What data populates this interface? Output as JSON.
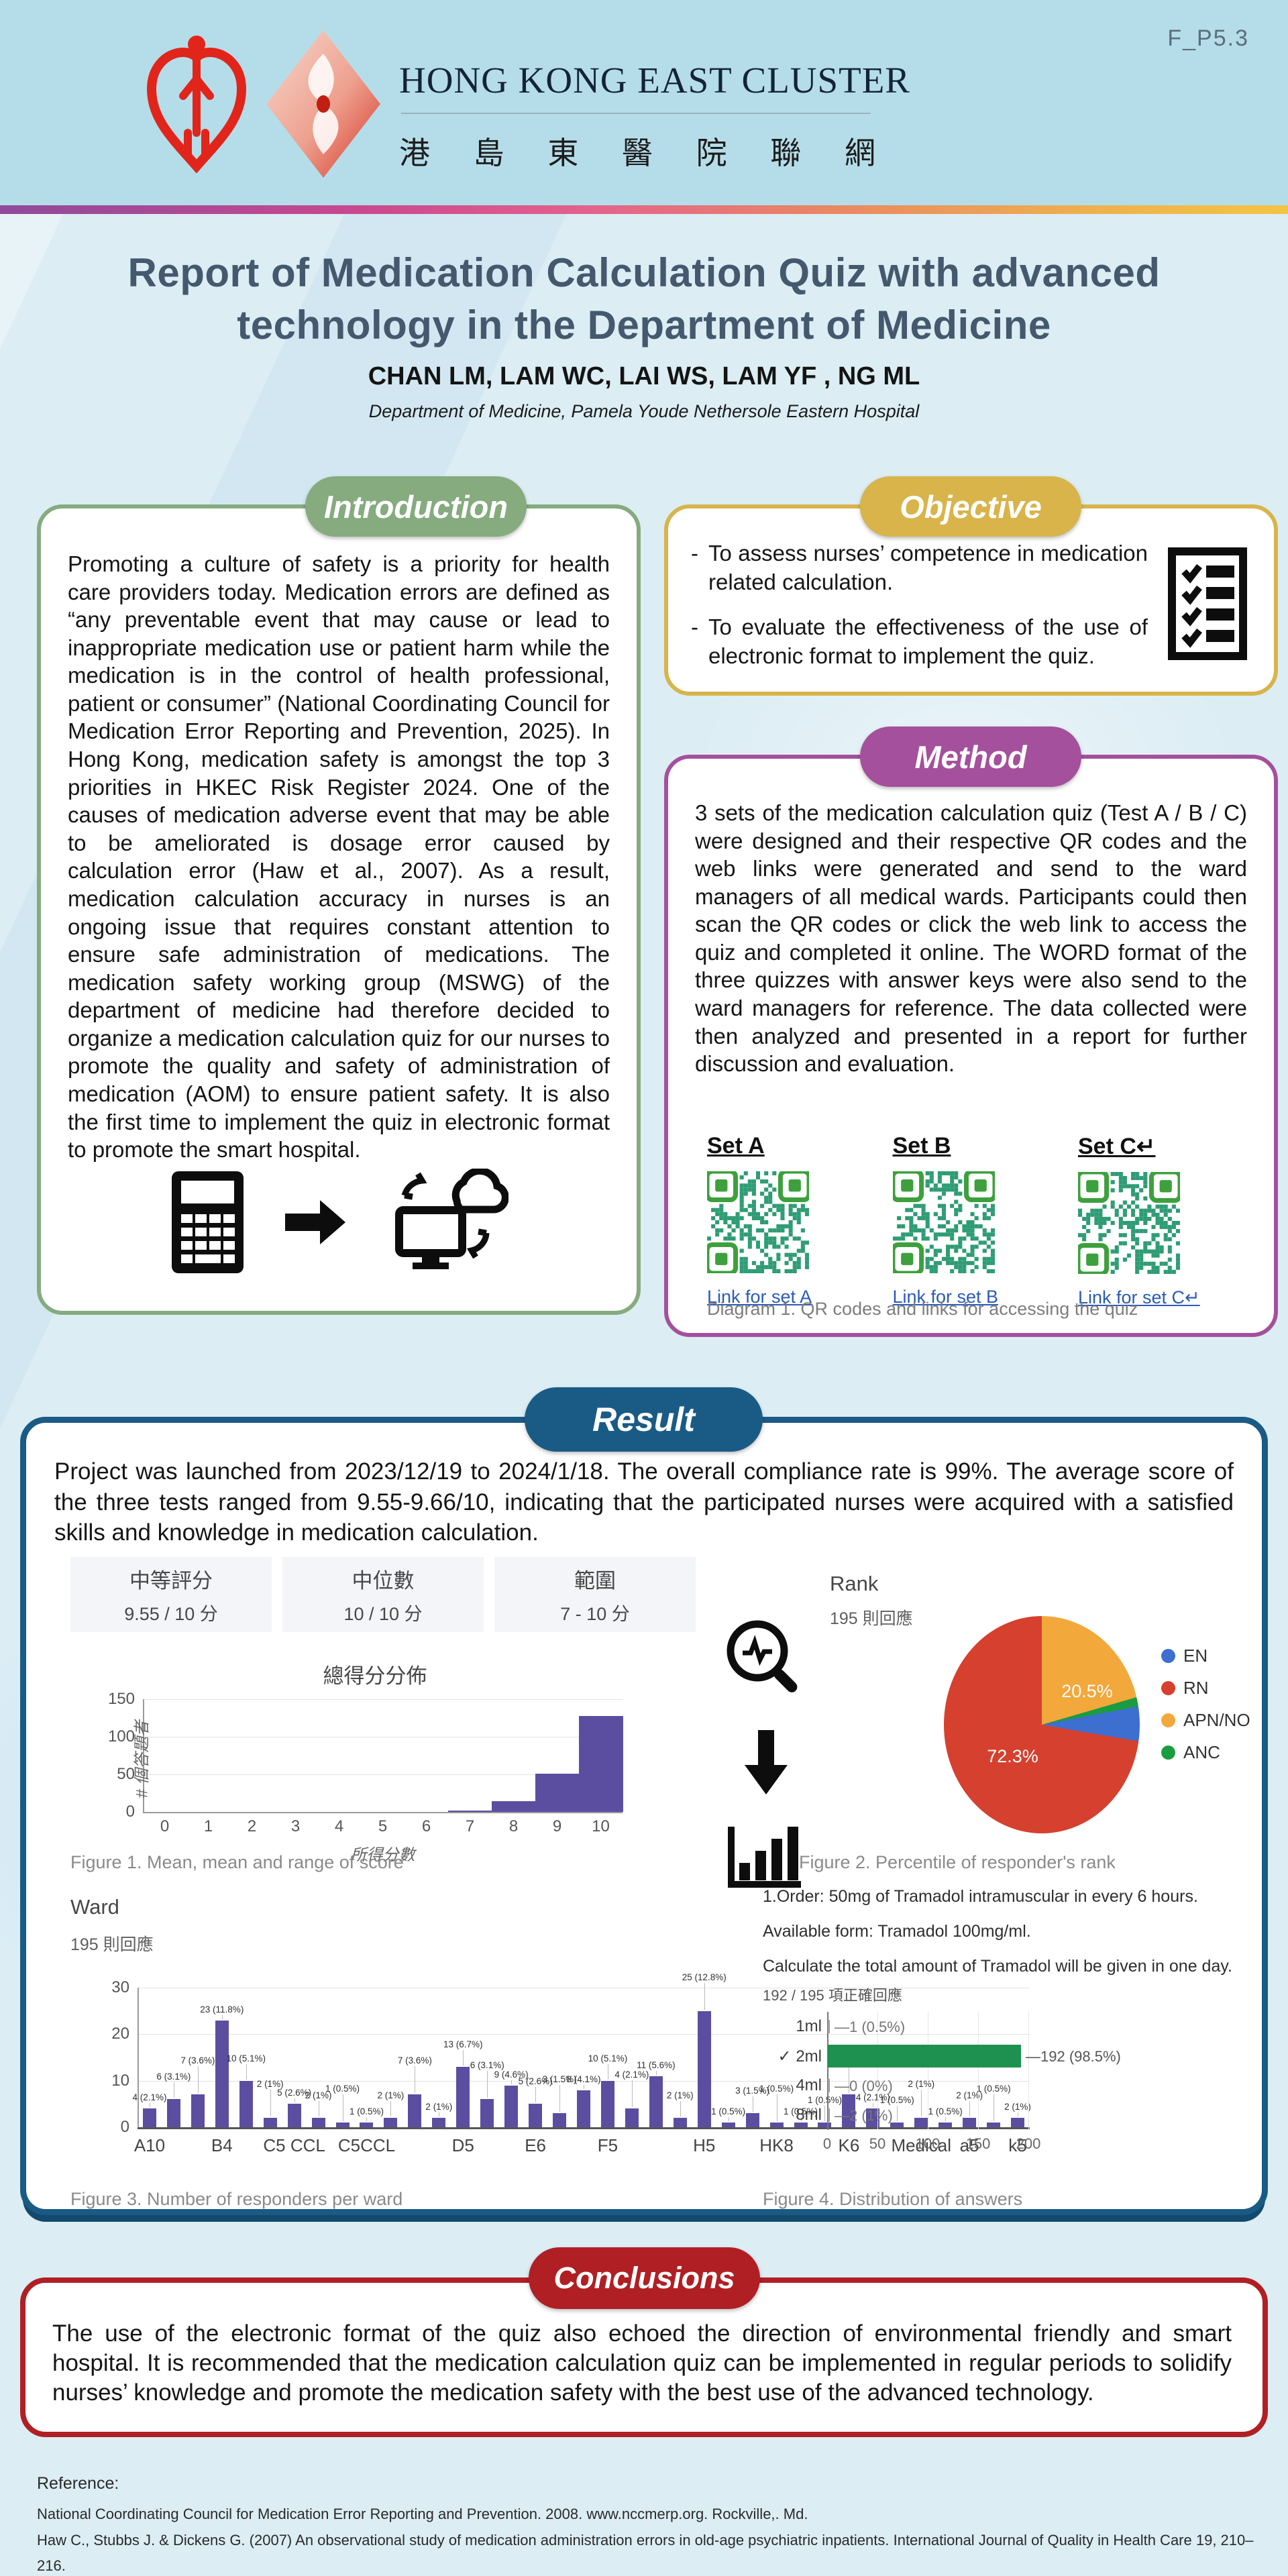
{
  "page_code": "F_P5.3",
  "header": {
    "org_en": "HONG KONG EAST CLUSTER",
    "org_zh": [
      "港",
      "島",
      "東",
      "醫",
      "院",
      "聯",
      "網"
    ]
  },
  "title_block": {
    "title": "Report of Medication Calculation Quiz with advanced\ntechnology in the Department of Medicine",
    "authors": "CHAN LM, LAM WC, LAI WS, LAM YF , NG ML",
    "affiliation": "Department of Medicine, Pamela Youde Nethersole Eastern Hospital"
  },
  "introduction": {
    "heading": "Introduction",
    "body": "Promoting a culture of safety is a priority for health care providers today. Medication errors are defined as “any preventable event that may cause or lead to inappropriate medication use or patient harm while the medication is in the control of health professional, patient or consumer” (National Coordinating Council for Medication Error Reporting and Prevention, 2025). In Hong Kong, medication safety is amongst the top 3 priorities in HKEC Risk Register 2024. One of the causes of medication adverse event that may be able to be ameliorated is dosage error caused by calculation error (Haw et al., 2007). As a result, medication calculation accuracy in nurses is an ongoing issue that requires constant attention to ensure safe administration of medications. The medication safety working group (MSWG) of the department of medicine had therefore decided to organize a medication calculation quiz for our nurses to promote the quality and safety of administration of medication (AOM) to ensure patient safety. It is also the first time to implement the quiz in electronic format to promote the smart hospital."
  },
  "objective": {
    "heading": "Objective",
    "bullets": [
      "To assess nurses’ competence in medication related calculation.",
      "To evaluate the effectiveness of the use of electronic format to implement the quiz."
    ]
  },
  "method": {
    "heading": "Method",
    "body": "3 sets of the medication calculation quiz (Test A / B / C) were designed and their respective QR codes and the web links were generated and send to the ward managers of all medical wards. Participants could then scan the QR codes or click the web link to access the quiz and completed it online. The WORD format of the three quizzes with answer keys were also send to the ward managers for reference. The data collected were then analyzed and presented in a report for further discussion and evaluation.",
    "qr_sets": [
      {
        "set_label": "Set A",
        "link_label": "Link for set A"
      },
      {
        "set_label": "Set B",
        "link_label": "Link for set B"
      },
      {
        "set_label": "Set C↵",
        "link_label": "Link for set C↵"
      }
    ],
    "diagram_caption": "Diagram 1. QR codes and links for accessing the quiz"
  },
  "result": {
    "heading": "Result",
    "body": "Project was launched from 2023/12/19 to 2024/1/18. The overall compliance rate is 99%. The average score of the three tests ranged from 9.55-9.66/10, indicating that the participated nurses were acquired with a satisfied skills and knowledge in medication calculation.",
    "figure1_caption": "Figure 1. Mean, mean and range of score",
    "figure2_caption": "Figure 2. Percentile of responder's rank",
    "figure3_caption": "Figure 3. Number of responders per ward",
    "figure4_caption": "Figure 4. Distribution of answers"
  },
  "conclusions": {
    "heading": "Conclusions",
    "body": "The use of the electronic format of the quiz also echoed the direction of environmental friendly and smart hospital. It is recommended that the medication calculation quiz can be implemented in regular periods to solidify nurses’ knowledge and promote the medication safety with the best use of the advanced technology."
  },
  "reference": {
    "heading": "Reference:",
    "items": [
      "National Coordinating Council for Medication Error Reporting and Prevention. 2008. www.nccmerp.org. Rockville,. Md.",
      "Haw C., Stubbs J. & Dickens G. (2007) An observational study of medication administration errors in old-age psychiatric inpatients. International Journal of Quality in Health Care 19, 210–216."
    ]
  },
  "icons": {
    "calculator-icon": "svg",
    "arrow-right-icon": "svg",
    "cloud-computer-icon": "svg",
    "checklist-icon": "svg",
    "magnifier-analytics-icon": "svg",
    "arrow-down-icon": "svg",
    "bar-chart-icon": "svg",
    "ha-heart-logo": "svg",
    "hkec-diamond-logo": "svg",
    "qr-code": "svg"
  },
  "chart_data": [
    {
      "id": "fig1",
      "type": "bar",
      "title": "總得分分佈",
      "stats": [
        {
          "label": "中等評分",
          "value": "9.55 / 10 分"
        },
        {
          "label": "中位數",
          "value": "10 / 10 分"
        },
        {
          "label": "範圍",
          "value": "7 - 10 分"
        }
      ],
      "categories": [
        "0",
        "1",
        "2",
        "3",
        "4",
        "5",
        "6",
        "7",
        "8",
        "9",
        "10"
      ],
      "values": [
        0,
        0,
        0,
        0,
        0,
        0,
        0,
        2,
        14,
        51,
        128
      ],
      "xlabel": "所得分數",
      "ylabel": "# 個答題者",
      "yticks": [
        0,
        50,
        100,
        150
      ],
      "ylim": [
        0,
        150
      ],
      "bar_color": "#5b4ea0",
      "grid": true,
      "legend_position": "none"
    },
    {
      "id": "fig2",
      "type": "pie",
      "title": "Rank",
      "subtitle": "195 則回應",
      "slices": [
        {
          "label": "APN/NO",
          "pct": 20.5,
          "color": "#f3a83b",
          "value_label": "20.5%",
          "label_x": 60,
          "label_y": 30
        },
        {
          "label": "ANC",
          "pct": 1.5,
          "color": "#1a9c40"
        },
        {
          "label": "EN",
          "pct": 5.7,
          "color": "#3d6fd1"
        },
        {
          "label": "RN",
          "pct": 72.3,
          "color": "#d6402e",
          "value_label": "72.3%",
          "label_x": 22,
          "label_y": 60
        }
      ],
      "legend": [
        {
          "label": "EN",
          "color": "#3d6fd1"
        },
        {
          "label": "RN",
          "color": "#d6402e"
        },
        {
          "label": "APN/NO",
          "color": "#f3a83b"
        },
        {
          "label": "ANC",
          "color": "#1a9c40"
        }
      ],
      "legend_position": "right",
      "start_angle": "top-clockwise"
    },
    {
      "id": "fig3",
      "type": "bar",
      "title": "Ward",
      "subtitle": "195 則回應",
      "values": [
        4,
        6,
        7,
        23,
        10,
        2,
        5,
        2,
        1,
        1,
        2,
        7,
        2,
        13,
        6,
        9,
        5,
        3,
        8,
        10,
        4,
        11,
        2,
        25,
        1,
        3,
        1,
        1,
        1,
        7,
        4,
        1,
        2,
        1,
        2,
        1,
        2
      ],
      "labels": [
        "4 (2.1%)",
        "6 (3.1%)",
        "7 (3.6%)",
        "23 (11.8%)",
        "10 (5.1%)",
        "2 (1%)",
        "5 (2.6%)",
        "2 (1%)",
        "1 (0.5%)",
        "1 (0.5%)",
        "2 (1%)",
        "7 (3.6%)",
        "2 (1%)",
        "13 (6.7%)",
        "6 (3.1%)",
        "9 (4.6%)",
        "5 (2.6%)",
        "3 (1.5%)",
        "8 (4.1%)",
        "10 (5.1%)",
        "4 (2.1%)",
        "11 (5.6%)",
        "2 (1%)",
        "25 (12.8%)",
        "1 (0.5%)",
        "3 (1.5%)",
        "1 (0.5%)",
        "1 (0.5%)",
        "1 (0.5%)",
        "7 (3.6%)",
        "4 (2.1%)",
        "1 (0.5%)",
        "2 (1%)",
        "1 (0.5%)",
        "2 (1%)",
        "1 (0.5%)",
        "2 (1%)"
      ],
      "xticks": [
        {
          "label": "A10",
          "index": 0
        },
        {
          "label": "B4",
          "index": 3
        },
        {
          "label": "C5 CCL",
          "index": 6
        },
        {
          "label": "C5CCL",
          "index": 9
        },
        {
          "label": "D5",
          "index": 13
        },
        {
          "label": "E6",
          "index": 16
        },
        {
          "label": "F5",
          "index": 19
        },
        {
          "label": "H5",
          "index": 23
        },
        {
          "label": "HK8",
          "index": 26
        },
        {
          "label": "K6",
          "index": 29
        },
        {
          "label": "Medical",
          "index": 32
        },
        {
          "label": "a5",
          "index": 34
        },
        {
          "label": "k5",
          "index": 36
        }
      ],
      "yticks": [
        0,
        10,
        20,
        30
      ],
      "ylim": [
        0,
        30
      ],
      "bar_color": "#5b4ea0",
      "grid": true,
      "legend_position": "none"
    },
    {
      "id": "fig4",
      "type": "hbar",
      "question_lines": [
        "1.Order: 50mg of Tramadol intramuscular in every 6 hours.",
        "Available form: Tramadol 100mg/ml.",
        "Calculate the total amount of Tramadol will be given in one day."
      ],
      "subtitle": "192 / 195 項正確回應",
      "rows": [
        {
          "label": "1ml",
          "value": 1,
          "value_label": "1 (0.5%)",
          "correct": false
        },
        {
          "label": "2ml",
          "value": 192,
          "value_label": "192 (98.5%)",
          "correct": true,
          "prefix": "✓"
        },
        {
          "label": "4ml",
          "value": 0,
          "value_label": "0 (0%)",
          "correct": false
        },
        {
          "label": "8ml",
          "value": 2,
          "value_label": "2 (1%)",
          "correct": false
        }
      ],
      "xticks": [
        0,
        50,
        100,
        150,
        200
      ],
      "xlim": [
        0,
        200
      ],
      "correct_color": "#1e9150",
      "other_color": "#9e9e9e",
      "grid": true
    }
  ]
}
